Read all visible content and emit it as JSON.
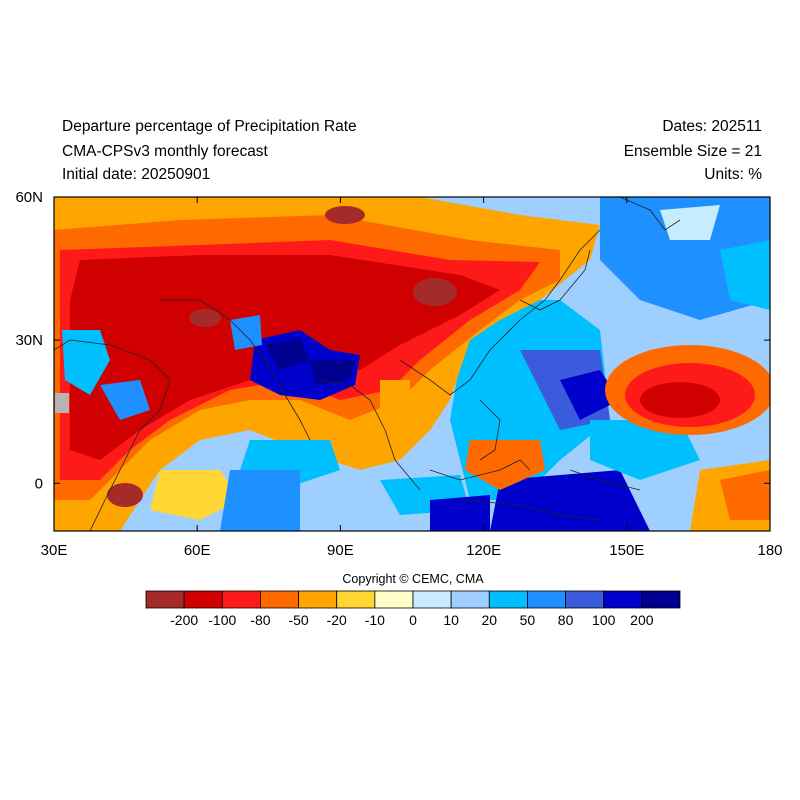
{
  "header": {
    "title": "Departure percentage of Precipitation Rate",
    "model": "CMA-CPSv3 monthly forecast",
    "initial_date": "Initial date: 20250901",
    "dates": "Dates: 202511",
    "ensemble": "Ensemble Size = 21",
    "units": "Units: %"
  },
  "axes": {
    "lat_ticks": [
      "60N",
      "30N",
      "0"
    ],
    "lon_ticks": [
      "30E",
      "60E",
      "90E",
      "120E",
      "150E",
      "180"
    ],
    "lat_range": [
      -10,
      60
    ],
    "lon_range": [
      30,
      180
    ]
  },
  "colorbar": {
    "labels": [
      "-200",
      "-100",
      "-80",
      "-50",
      "-20",
      "-10",
      "0",
      "10",
      "20",
      "50",
      "80",
      "100",
      "200"
    ],
    "colors": [
      "#a52a2a",
      "#d10000",
      "#ff1a1a",
      "#ff6a00",
      "#ffa500",
      "#ffd633",
      "#ffffc8",
      "#c8ecff",
      "#9fcfff",
      "#00bfff",
      "#1e90ff",
      "#3a5bdc",
      "#0000cd",
      "#000090"
    ]
  },
  "copyright": "Copyright © CEMC, CMA"
}
